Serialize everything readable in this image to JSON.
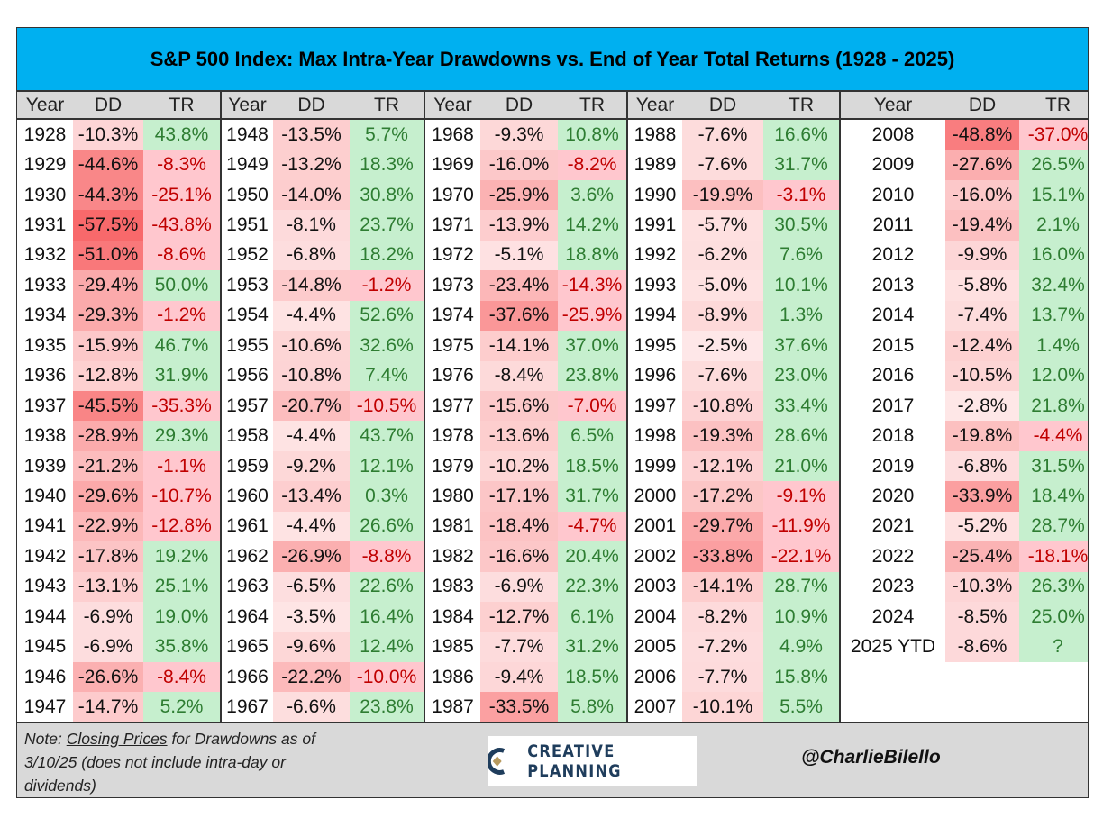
{
  "title": "S&P 500 Index: Max Intra-Year Drawdowns vs. End of Year Total Returns (1928 - 2025)",
  "colors": {
    "title_bg": "#00B0F0",
    "header_bg": "#D9D9D9",
    "dd_max": "#F8696B",
    "tr_pos_bg": "#C6EFCE",
    "tr_pos_text": "#2E7D32",
    "tr_neg_bg": "#FFC7CE",
    "tr_neg_text": "#C00000"
  },
  "chart_data": {
    "type": "table",
    "title": "S&P 500 Index: Max Intra-Year Drawdowns vs. End of Year Total Returns (1928 - 2025)",
    "columns": [
      "Year",
      "DD",
      "TR"
    ],
    "groups": [
      [
        [
          "1928",
          "-10.3%",
          "43.8%"
        ],
        [
          "1929",
          "-44.6%",
          "-8.3%"
        ],
        [
          "1930",
          "-44.3%",
          "-25.1%"
        ],
        [
          "1931",
          "-57.5%",
          "-43.8%"
        ],
        [
          "1932",
          "-51.0%",
          "-8.6%"
        ],
        [
          "1933",
          "-29.4%",
          "50.0%"
        ],
        [
          "1934",
          "-29.3%",
          "-1.2%"
        ],
        [
          "1935",
          "-15.9%",
          "46.7%"
        ],
        [
          "1936",
          "-12.8%",
          "31.9%"
        ],
        [
          "1937",
          "-45.5%",
          "-35.3%"
        ],
        [
          "1938",
          "-28.9%",
          "29.3%"
        ],
        [
          "1939",
          "-21.2%",
          "-1.1%"
        ],
        [
          "1940",
          "-29.6%",
          "-10.7%"
        ],
        [
          "1941",
          "-22.9%",
          "-12.8%"
        ],
        [
          "1942",
          "-17.8%",
          "19.2%"
        ],
        [
          "1943",
          "-13.1%",
          "25.1%"
        ],
        [
          "1944",
          "-6.9%",
          "19.0%"
        ],
        [
          "1945",
          "-6.9%",
          "35.8%"
        ],
        [
          "1946",
          "-26.6%",
          "-8.4%"
        ],
        [
          "1947",
          "-14.7%",
          "5.2%"
        ]
      ],
      [
        [
          "1948",
          "-13.5%",
          "5.7%"
        ],
        [
          "1949",
          "-13.2%",
          "18.3%"
        ],
        [
          "1950",
          "-14.0%",
          "30.8%"
        ],
        [
          "1951",
          "-8.1%",
          "23.7%"
        ],
        [
          "1952",
          "-6.8%",
          "18.2%"
        ],
        [
          "1953",
          "-14.8%",
          "-1.2%"
        ],
        [
          "1954",
          "-4.4%",
          "52.6%"
        ],
        [
          "1955",
          "-10.6%",
          "32.6%"
        ],
        [
          "1956",
          "-10.8%",
          "7.4%"
        ],
        [
          "1957",
          "-20.7%",
          "-10.5%"
        ],
        [
          "1958",
          "-4.4%",
          "43.7%"
        ],
        [
          "1959",
          "-9.2%",
          "12.1%"
        ],
        [
          "1960",
          "-13.4%",
          "0.3%"
        ],
        [
          "1961",
          "-4.4%",
          "26.6%"
        ],
        [
          "1962",
          "-26.9%",
          "-8.8%"
        ],
        [
          "1963",
          "-6.5%",
          "22.6%"
        ],
        [
          "1964",
          "-3.5%",
          "16.4%"
        ],
        [
          "1965",
          "-9.6%",
          "12.4%"
        ],
        [
          "1966",
          "-22.2%",
          "-10.0%"
        ],
        [
          "1967",
          "-6.6%",
          "23.8%"
        ]
      ],
      [
        [
          "1968",
          "-9.3%",
          "10.8%"
        ],
        [
          "1969",
          "-16.0%",
          "-8.2%"
        ],
        [
          "1970",
          "-25.9%",
          "3.6%"
        ],
        [
          "1971",
          "-13.9%",
          "14.2%"
        ],
        [
          "1972",
          "-5.1%",
          "18.8%"
        ],
        [
          "1973",
          "-23.4%",
          "-14.3%"
        ],
        [
          "1974",
          "-37.6%",
          "-25.9%"
        ],
        [
          "1975",
          "-14.1%",
          "37.0%"
        ],
        [
          "1976",
          "-8.4%",
          "23.8%"
        ],
        [
          "1977",
          "-15.6%",
          "-7.0%"
        ],
        [
          "1978",
          "-13.6%",
          "6.5%"
        ],
        [
          "1979",
          "-10.2%",
          "18.5%"
        ],
        [
          "1980",
          "-17.1%",
          "31.7%"
        ],
        [
          "1981",
          "-18.4%",
          "-4.7%"
        ],
        [
          "1982",
          "-16.6%",
          "20.4%"
        ],
        [
          "1983",
          "-6.9%",
          "22.3%"
        ],
        [
          "1984",
          "-12.7%",
          "6.1%"
        ],
        [
          "1985",
          "-7.7%",
          "31.2%"
        ],
        [
          "1986",
          "-9.4%",
          "18.5%"
        ],
        [
          "1987",
          "-33.5%",
          "5.8%"
        ]
      ],
      [
        [
          "1988",
          "-7.6%",
          "16.6%"
        ],
        [
          "1989",
          "-7.6%",
          "31.7%"
        ],
        [
          "1990",
          "-19.9%",
          "-3.1%"
        ],
        [
          "1991",
          "-5.7%",
          "30.5%"
        ],
        [
          "1992",
          "-6.2%",
          "7.6%"
        ],
        [
          "1993",
          "-5.0%",
          "10.1%"
        ],
        [
          "1994",
          "-8.9%",
          "1.3%"
        ],
        [
          "1995",
          "-2.5%",
          "37.6%"
        ],
        [
          "1996",
          "-7.6%",
          "23.0%"
        ],
        [
          "1997",
          "-10.8%",
          "33.4%"
        ],
        [
          "1998",
          "-19.3%",
          "28.6%"
        ],
        [
          "1999",
          "-12.1%",
          "21.0%"
        ],
        [
          "2000",
          "-17.2%",
          "-9.1%"
        ],
        [
          "2001",
          "-29.7%",
          "-11.9%"
        ],
        [
          "2002",
          "-33.8%",
          "-22.1%"
        ],
        [
          "2003",
          "-14.1%",
          "28.7%"
        ],
        [
          "2004",
          "-8.2%",
          "10.9%"
        ],
        [
          "2005",
          "-7.2%",
          "4.9%"
        ],
        [
          "2006",
          "-7.7%",
          "15.8%"
        ],
        [
          "2007",
          "-10.1%",
          "5.5%"
        ]
      ],
      [
        [
          "2008",
          "-48.8%",
          "-37.0%"
        ],
        [
          "2009",
          "-27.6%",
          "26.5%"
        ],
        [
          "2010",
          "-16.0%",
          "15.1%"
        ],
        [
          "2011",
          "-19.4%",
          "2.1%"
        ],
        [
          "2012",
          "-9.9%",
          "16.0%"
        ],
        [
          "2013",
          "-5.8%",
          "32.4%"
        ],
        [
          "2014",
          "-7.4%",
          "13.7%"
        ],
        [
          "2015",
          "-12.4%",
          "1.4%"
        ],
        [
          "2016",
          "-10.5%",
          "12.0%"
        ],
        [
          "2017",
          "-2.8%",
          "21.8%"
        ],
        [
          "2018",
          "-19.8%",
          "-4.4%"
        ],
        [
          "2019",
          "-6.8%",
          "31.5%"
        ],
        [
          "2020",
          "-33.9%",
          "18.4%"
        ],
        [
          "2021",
          "-5.2%",
          "28.7%"
        ],
        [
          "2022",
          "-25.4%",
          "-18.1%"
        ],
        [
          "2023",
          "-10.3%",
          "26.3%"
        ],
        [
          "2024",
          "-8.5%",
          "25.0%"
        ],
        [
          "2025 YTD",
          "-8.6%",
          "?"
        ]
      ]
    ]
  },
  "footer": {
    "note_prefix": "Note:",
    "note_link": "Closing Prices",
    "note_rest": "for Drawdowns as of 3/10/25 (does not include intra-day or dividends)",
    "logo_text": "CREATIVE PLANNING",
    "handle": "@CharlieBilello"
  }
}
